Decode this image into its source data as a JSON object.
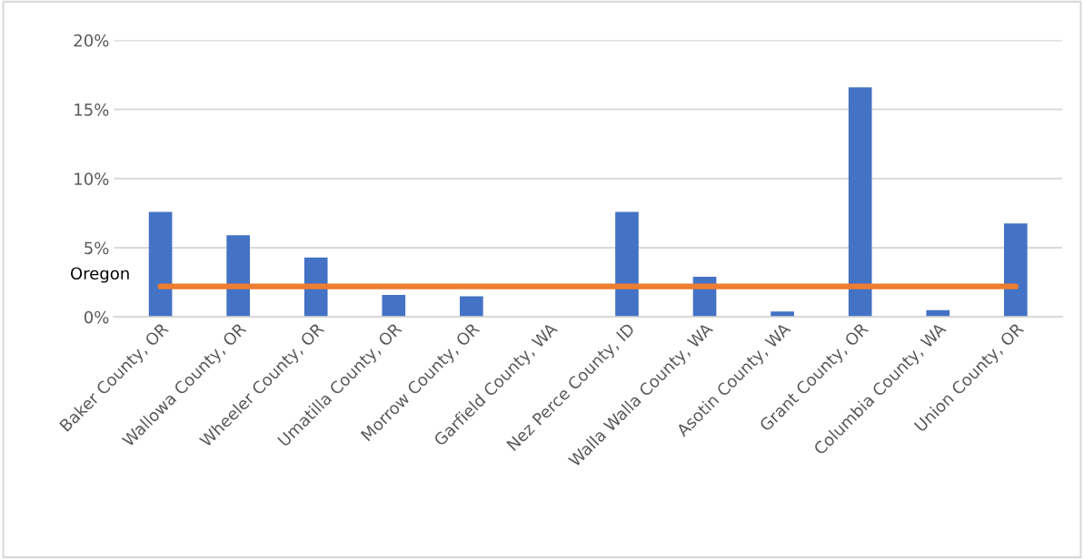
{
  "chart_data": {
    "type": "bar",
    "categories": [
      "Baker County, OR",
      "Wallowa County, OR",
      "Wheeler County, OR",
      "Umatilla County, OR",
      "Morrow County, OR",
      "Garfield County, WA",
      "Nez Perce County, ID",
      "Walla Walla County, WA",
      "Asotin County, WA",
      "Grant County, OR",
      "Columbia County, WA",
      "Union County, OR"
    ],
    "series": [
      {
        "color": "#4472c4",
        "values": [
          7.6,
          5.9,
          4.3,
          1.6,
          1.5,
          0,
          7.6,
          2.9,
          0.4,
          16.6,
          0.5,
          6.75
        ]
      },
      {
        "type": "line",
        "name": "Oregon",
        "color": "#ed7d31",
        "values": [
          2.2,
          2.2,
          2.2,
          2.2,
          2.2,
          2.2,
          2.2,
          2.2,
          2.2,
          2.2,
          2.2,
          2.2
        ]
      }
    ],
    "ylim": [
      0,
      20
    ],
    "yticks": [
      {
        "value": 0,
        "label": "0%"
      },
      {
        "value": 5,
        "label": "5%"
      },
      {
        "value": 10,
        "label": "10%"
      },
      {
        "value": 15,
        "label": "15%"
      },
      {
        "value": 20,
        "label": "20%"
      }
    ],
    "grid": "y",
    "legend": false
  }
}
